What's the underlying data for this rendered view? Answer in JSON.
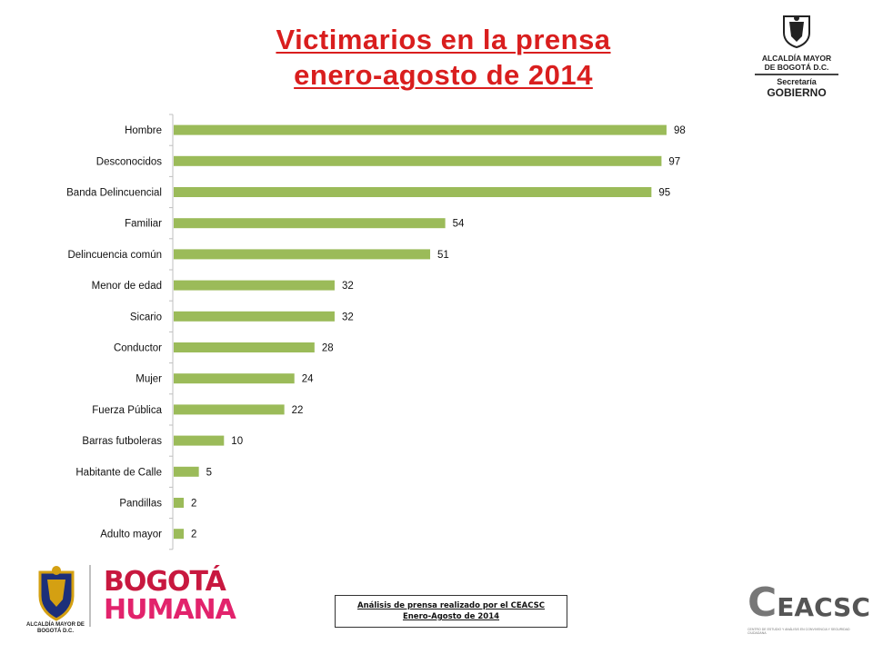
{
  "title": {
    "line1": "Victimarios en la prensa",
    "line2": "enero-agosto  de 2014"
  },
  "top_logo": {
    "line1": "ALCALDÍA MAYOR",
    "line2": "DE BOGOTÁ D.C.",
    "line3": "Secretaría",
    "line4": "GOBIERNO"
  },
  "chart_data": {
    "type": "bar",
    "orientation": "horizontal",
    "categories": [
      "Hombre",
      "Desconocidos",
      "Banda Delincuencial",
      "Familiar",
      "Delincuencia común",
      "Menor de edad",
      "Sicario",
      "Conductor",
      "Mujer",
      "Fuerza Pública",
      "Barras futboleras",
      "Habitante de Calle",
      "Pandillas",
      "Adulto mayor"
    ],
    "values": [
      98,
      97,
      95,
      54,
      51,
      32,
      32,
      28,
      24,
      22,
      10,
      5,
      2,
      2
    ],
    "xlim": [
      0,
      100
    ],
    "grid": false,
    "color": "#9bbb59"
  },
  "footer": {
    "line1": "Análisis de prensa realizado por el CEACSC",
    "line2": "Enero-Agosto de 2014"
  },
  "bottom_logo": {
    "caption": "ALCALDÍA MAYOR DE BOGOTÁ D.C.",
    "brand_line1": "BOGOTÁ",
    "brand_line2": "HUMANA"
  },
  "ceacsc_logo": {
    "initial": "C",
    "rest": "EACSC",
    "subtitle": "CENTRO DE ESTUDIO Y ANÁLISIS EN CONVIVENCIA Y SEGURIDAD CIUDADANA"
  }
}
